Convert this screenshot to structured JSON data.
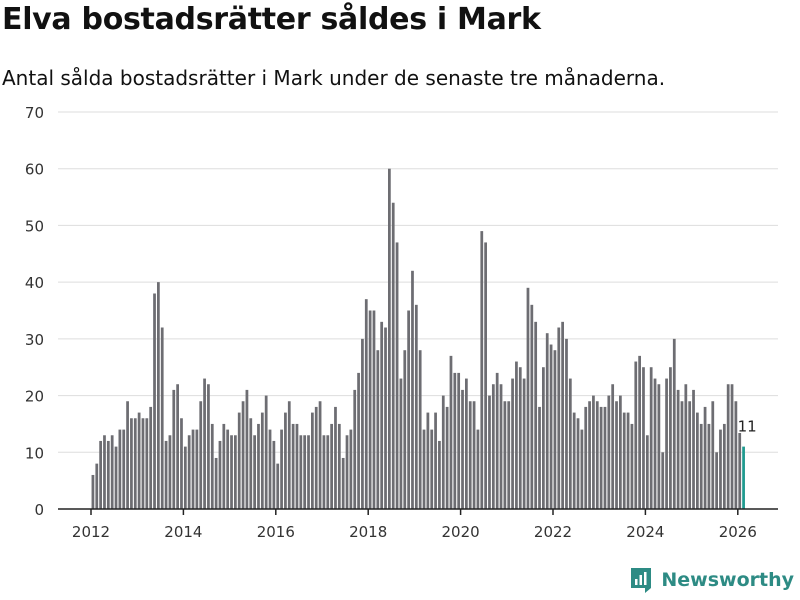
{
  "title": "Elva bostadsrätter såldes i Mark",
  "subtitle": "Antal sålda bostadsrätter i Mark under de senaste tre månaderna.",
  "brand": "Newsworthy",
  "colors": {
    "bar": "#6d6d72",
    "highlight": "#1f9a8f",
    "grid": "#dddddd",
    "brand": "#2d8b84"
  },
  "chart_data": {
    "type": "bar",
    "title": "Elva bostadsrätter såldes i Mark",
    "xlabel": "",
    "ylabel": "",
    "ylim": [
      0,
      70
    ],
    "yticks": [
      0,
      10,
      20,
      30,
      40,
      50,
      60,
      70
    ],
    "xticks": [
      "2012",
      "2014",
      "2016",
      "2018",
      "2020",
      "2022",
      "2024",
      "2026"
    ],
    "x_start_year": 2012,
    "x_start_month": 1,
    "grid": true,
    "highlight_label": "11",
    "values": [
      6,
      8,
      12,
      13,
      12,
      13,
      11,
      14,
      14,
      19,
      16,
      16,
      17,
      16,
      16,
      18,
      38,
      40,
      32,
      12,
      13,
      21,
      22,
      16,
      11,
      13,
      14,
      14,
      19,
      23,
      22,
      15,
      9,
      12,
      15,
      14,
      13,
      13,
      17,
      19,
      21,
      16,
      13,
      15,
      17,
      20,
      14,
      12,
      8,
      14,
      17,
      19,
      15,
      15,
      13,
      13,
      13,
      17,
      18,
      19,
      13,
      13,
      15,
      18,
      15,
      9,
      13,
      14,
      21,
      24,
      30,
      37,
      35,
      35,
      28,
      33,
      32,
      60,
      54,
      47,
      23,
      28,
      35,
      42,
      36,
      28,
      14,
      17,
      14,
      17,
      12,
      20,
      18,
      27,
      24,
      24,
      21,
      23,
      19,
      19,
      14,
      49,
      47,
      20,
      22,
      24,
      22,
      19,
      19,
      23,
      26,
      25,
      23,
      39,
      36,
      33,
      18,
      25,
      31,
      29,
      28,
      32,
      33,
      30,
      23,
      17,
      16,
      14,
      18,
      19,
      20,
      19,
      18,
      18,
      20,
      22,
      19,
      20,
      17,
      17,
      15,
      26,
      27,
      25,
      13,
      25,
      23,
      22,
      10,
      23,
      25,
      30,
      21,
      19,
      22,
      19,
      21,
      17,
      15,
      18,
      15,
      19,
      10,
      14,
      15,
      22,
      22,
      19,
      14,
      11
    ]
  }
}
